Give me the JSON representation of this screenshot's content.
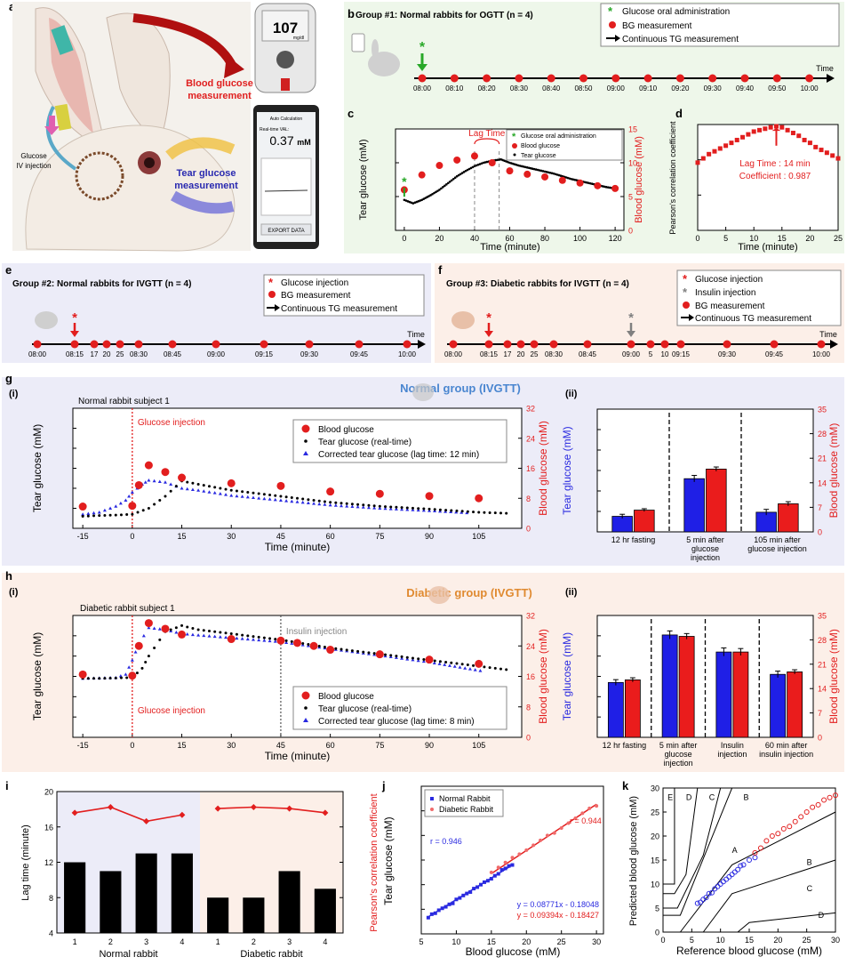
{
  "labels": {
    "a": "a",
    "b": "b",
    "c": "c",
    "d": "d",
    "e": "e",
    "f": "f",
    "g": "g",
    "h": "h",
    "i": "i",
    "j": "j",
    "k": "k"
  },
  "panel_a": {
    "bg_text_1": "Blood glucose",
    "bg_text_2": "measurement",
    "tg_text_1": "Tear glucose",
    "tg_text_2": "measurement",
    "iv_text_1": "Glucose",
    "iv_text_2": "IV injection",
    "meter_value": "107",
    "meter_unit": "mg/dl",
    "phone_header": "Auto Calculation",
    "phone_label": "Real-time VAL:",
    "phone_value": "0.37",
    "phone_unit": "mM",
    "phone_export": "EXPORT DATA"
  },
  "legend_common": {
    "glucose_oral": "Glucose oral administration",
    "bg_meas": "BG measurement",
    "tg_cont": "Continuous TG measurement",
    "glucose_inj": "Glucose injection",
    "insulin_inj": "Insulin injection",
    "time": "Time"
  },
  "panel_b": {
    "title": "Group #1: Normal rabbits for OGTT (n = 4)",
    "times": [
      "08:00",
      "08:10",
      "08:20",
      "08:30",
      "08:40",
      "08:50",
      "09:00",
      "09:10",
      "09:20",
      "09:30",
      "09:40",
      "09:50",
      "10:00"
    ]
  },
  "panel_e": {
    "title": "Group #2: Normal rabbits for IVGTT (n = 4)",
    "times": [
      "08:00",
      "08:15",
      "17",
      "20",
      "25",
      "08:30",
      "08:45",
      "09:00",
      "09:15",
      "09:30",
      "09:45",
      "10:00"
    ]
  },
  "panel_f": {
    "title": "Group #3: Diabetic rabbits for IVGTT (n = 4)",
    "times": [
      "08:00",
      "08:15",
      "17",
      "20",
      "25",
      "08:30",
      "08:45",
      "09:00",
      "5",
      "10",
      "09:15",
      "09:30",
      "09:45",
      "10:00"
    ]
  },
  "panel_c": {
    "legend": [
      "Glucose oral administration",
      "Blood glucose",
      "Tear glucose"
    ],
    "annotation": "Lag Time",
    "xlabel": "Time (minute)",
    "ylabel": "Tear glucose (mM)",
    "y2label": "Blood glucose (mM)"
  },
  "panel_d": {
    "xlabel": "Time (minute)",
    "ylabel": "Pearson's correlation coefficient",
    "annotation_1": "Lag Time : 14 min",
    "annotation_2": "Coefficient : 0.987"
  },
  "panel_g": {
    "sub_i": "(i)",
    "sub_ii": "(ii)",
    "subject": "Normal rabbit subject 1",
    "group_title": "Normal group (IVGTT)",
    "injection": "Glucose injection",
    "legend": [
      "Blood glucose",
      "Tear glucose (real-time)",
      "Corrected tear glucose (lag time: 12 min)"
    ],
    "xlabel": "Time (minute)",
    "ylabel": "Tear glucose (mM)",
    "y2label": "Blood glucose (mM)",
    "bar_categories": [
      "12 hr fasting",
      "5 min after glucose injection",
      "105 min after glucose injection"
    ]
  },
  "panel_h": {
    "sub_i": "(i)",
    "sub_ii": "(ii)",
    "subject": "Diabetic rabbit subject 1",
    "group_title": "Diabetic group (IVGTT)",
    "injection": "Glucose injection",
    "insulin": "Insulin injection",
    "legend": [
      "Blood glucose",
      "Tear glucose (real-time)",
      "Corrected tear glucose (lag time: 8 min)"
    ],
    "xlabel": "Time (minute)",
    "ylabel": "Tear glucose (mM)",
    "y2label": "Blood glucose (mM)",
    "bar_categories": [
      "12 hr fasting",
      "5 min after glucose injection",
      "Insulin injection",
      "60 min after insulin injection"
    ]
  },
  "panel_i": {
    "ylabel": "Lag time (minute)",
    "y2label": "Pearson's correlation coefficient",
    "group_normal": "Normal rabbit",
    "group_diabetic": "Diabetic rabbit"
  },
  "panel_j": {
    "xlabel": "Blood glucose (mM)",
    "ylabel": "Tear glucose (mM)",
    "legend": [
      "Normal Rabbit",
      "Diabetic Rabbit"
    ],
    "r_normal": "r = 0.946",
    "r_diabetic": "r = 0.944",
    "eq_normal": "y = 0.08771x - 0.18048",
    "eq_diabetic": "y = 0.09394x - 0.18427"
  },
  "panel_k": {
    "xlabel": "Reference blood glucose (mM)",
    "ylabel": "Predicted blood glucose (mM)",
    "zones": [
      "A",
      "B",
      "B",
      "C",
      "C",
      "D",
      "D",
      "E"
    ]
  },
  "chart_data": [
    {
      "id": "c",
      "type": "scatter",
      "xlim": [
        -5,
        125
      ],
      "ylim": [
        0,
        1.5
      ],
      "y2lim": [
        0,
        15
      ],
      "xticks": [
        0,
        20,
        40,
        60,
        80,
        100,
        120
      ],
      "yticks": [
        0.0,
        0.5,
        1.0,
        1.5
      ],
      "y2ticks": [
        0,
        5,
        10,
        15
      ],
      "series": [
        {
          "name": "Blood glucose",
          "axis": "y2",
          "x": [
            0,
            10,
            20,
            30,
            40,
            50,
            60,
            70,
            80,
            90,
            100,
            110,
            120
          ],
          "values": [
            6.0,
            8.2,
            9.6,
            10.4,
            11.0,
            10.0,
            8.8,
            8.3,
            7.9,
            7.4,
            7.0,
            6.6,
            6.2
          ]
        },
        {
          "name": "Tear glucose",
          "axis": "y",
          "x": [
            0,
            5,
            10,
            15,
            20,
            25,
            30,
            35,
            40,
            45,
            50,
            55,
            60,
            65,
            70,
            75,
            80,
            85,
            90,
            95,
            100,
            105,
            110,
            115,
            120
          ],
          "values": [
            0.45,
            0.4,
            0.45,
            0.52,
            0.6,
            0.7,
            0.8,
            0.88,
            0.95,
            1.0,
            1.03,
            1.05,
            1.0,
            0.96,
            0.93,
            0.9,
            0.87,
            0.84,
            0.8,
            0.76,
            0.73,
            0.7,
            0.67,
            0.64,
            0.62
          ]
        }
      ],
      "glucose_marker_x": 0,
      "lag_lines_x": [
        40,
        54
      ]
    },
    {
      "id": "d",
      "type": "scatter",
      "xlim": [
        0,
        25
      ],
      "ylim": [
        0.25,
        1.0
      ],
      "xticks": [
        0,
        5,
        10,
        15,
        20,
        25
      ],
      "yticks": [
        0.25,
        0.5,
        0.75,
        1.0
      ],
      "x": [
        0,
        1,
        2,
        3,
        4,
        5,
        6,
        7,
        8,
        9,
        10,
        11,
        12,
        13,
        14,
        15,
        16,
        17,
        18,
        19,
        20,
        21,
        22,
        23,
        24,
        25
      ],
      "values": [
        0.73,
        0.76,
        0.79,
        0.81,
        0.83,
        0.85,
        0.87,
        0.89,
        0.91,
        0.93,
        0.95,
        0.96,
        0.97,
        0.98,
        0.987,
        0.98,
        0.96,
        0.94,
        0.92,
        0.89,
        0.87,
        0.84,
        0.82,
        0.8,
        0.78,
        0.76
      ]
    },
    {
      "id": "g-i",
      "type": "scatter",
      "xlim": [
        -18,
        118
      ],
      "ylim": [
        0,
        3.0
      ],
      "y2lim": [
        0,
        32
      ],
      "xticks": [
        -15,
        0,
        15,
        30,
        45,
        60,
        75,
        90,
        105
      ],
      "yticks": [
        0.0,
        0.5,
        1.0,
        1.5,
        2.0,
        2.5,
        3.0
      ],
      "y2ticks": [
        0,
        8,
        16,
        24,
        32
      ],
      "series": [
        {
          "name": "Blood glucose",
          "axis": "y2",
          "x": [
            -15,
            0,
            2,
            5,
            10,
            15,
            30,
            45,
            60,
            75,
            90,
            105
          ],
          "values": [
            5.8,
            6.0,
            11.5,
            16.8,
            15.0,
            13.5,
            12.0,
            11.3,
            9.8,
            9.2,
            8.6,
            8.0
          ]
        },
        {
          "name": "Tear glucose (real-time)",
          "axis": "y",
          "x": [
            -15,
            -10,
            -5,
            0,
            5,
            10,
            15,
            20,
            30,
            45,
            60,
            75,
            90,
            105,
            115
          ],
          "values": [
            0.3,
            0.32,
            0.33,
            0.35,
            0.5,
            0.8,
            1.18,
            1.1,
            0.95,
            0.8,
            0.65,
            0.55,
            0.48,
            0.4,
            0.37
          ]
        },
        {
          "name": "Corrected tear glucose (lag time: 12 min)",
          "axis": "y",
          "x": [
            -15,
            -10,
            -5,
            -2,
            0,
            3,
            5,
            10,
            15,
            20,
            30,
            45,
            60,
            75,
            90,
            103
          ],
          "values": [
            0.35,
            0.4,
            0.55,
            0.7,
            0.9,
            1.1,
            1.2,
            1.15,
            1.0,
            0.95,
            0.82,
            0.7,
            0.58,
            0.5,
            0.44,
            0.38
          ]
        }
      ],
      "injection_x": 0
    },
    {
      "id": "g-ii",
      "type": "bar",
      "categories": [
        "12 hr fasting",
        "5 min after glucose injection",
        "105 min after glucose injection"
      ],
      "ylim": [
        0,
        3.0
      ],
      "y2lim": [
        0,
        35
      ],
      "yticks": [
        0.0,
        0.5,
        1.0,
        1.5,
        2.0,
        2.5,
        3.0
      ],
      "y2ticks": [
        0,
        7,
        14,
        21,
        28,
        35
      ],
      "series": [
        {
          "name": "Tear glucose",
          "axis": "y",
          "values": [
            0.38,
            1.3,
            0.48
          ],
          "errors": [
            0.05,
            0.08,
            0.07
          ]
        },
        {
          "name": "Blood glucose",
          "axis": "y2",
          "values": [
            6.2,
            17.9,
            8.0
          ],
          "errors": [
            0.4,
            0.6,
            0.6
          ]
        }
      ]
    },
    {
      "id": "h-i",
      "type": "scatter",
      "xlim": [
        -18,
        118
      ],
      "ylim": [
        0,
        3.0
      ],
      "y2lim": [
        0,
        32
      ],
      "xticks": [
        -15,
        0,
        15,
        30,
        45,
        60,
        75,
        90,
        105
      ],
      "yticks": [
        0.0,
        0.5,
        1.0,
        1.5,
        2.0,
        2.5,
        3.0
      ],
      "y2ticks": [
        0,
        8,
        16,
        24,
        32
      ],
      "series": [
        {
          "name": "Blood glucose",
          "axis": "y2",
          "x": [
            -15,
            0,
            2,
            5,
            10,
            15,
            30,
            45,
            50,
            55,
            60,
            75,
            90,
            105
          ],
          "values": [
            16.5,
            16.2,
            24.0,
            30.0,
            28.5,
            27.0,
            25.8,
            25.4,
            24.8,
            24.0,
            23.0,
            21.8,
            20.4,
            19.3
          ]
        },
        {
          "name": "Tear glucose (real-time)",
          "axis": "y",
          "x": [
            -15,
            -10,
            -5,
            0,
            3,
            5,
            10,
            15,
            20,
            30,
            45,
            60,
            75,
            90,
            105,
            115
          ],
          "values": [
            1.45,
            1.45,
            1.46,
            1.47,
            1.7,
            2.0,
            2.6,
            2.75,
            2.65,
            2.55,
            2.4,
            2.2,
            2.05,
            1.9,
            1.75,
            1.65
          ]
        },
        {
          "name": "Corrected tear glucose (lag time: 8 min)",
          "axis": "y",
          "x": [
            -15,
            -10,
            -5,
            -2,
            0,
            2,
            5,
            10,
            15,
            30,
            45,
            60,
            75,
            90,
            107
          ],
          "values": [
            1.45,
            1.46,
            1.47,
            1.55,
            1.9,
            2.3,
            2.7,
            2.65,
            2.55,
            2.45,
            2.35,
            2.18,
            2.02,
            1.85,
            1.62
          ]
        }
      ],
      "injection_x": 0,
      "insulin_x": 45
    },
    {
      "id": "h-ii",
      "type": "bar",
      "categories": [
        "12 hr fasting",
        "5 min after glucose injection",
        "Insulin injection",
        "60 min after insulin injection"
      ],
      "ylim": [
        0,
        3.0
      ],
      "y2lim": [
        0,
        35
      ],
      "yticks": [
        0.0,
        0.5,
        1.0,
        1.5,
        2.0,
        2.5,
        3.0
      ],
      "y2ticks": [
        0,
        7,
        14,
        21,
        28,
        35
      ],
      "series": [
        {
          "name": "Tear glucose",
          "axis": "y",
          "values": [
            1.35,
            2.52,
            2.1,
            1.55
          ],
          "errors": [
            0.07,
            0.1,
            0.1,
            0.08
          ]
        },
        {
          "name": "Blood glucose",
          "axis": "y2",
          "values": [
            16.5,
            29.0,
            24.5,
            18.8
          ],
          "errors": [
            0.6,
            0.8,
            1.0,
            0.6
          ]
        }
      ]
    },
    {
      "id": "i",
      "type": "bar",
      "categories": [
        "1",
        "2",
        "3",
        "4",
        "1",
        "2",
        "3",
        "4"
      ],
      "ylim": [
        4,
        20
      ],
      "y2lim": [
        0.8,
        1.0
      ],
      "yticks": [
        4,
        8,
        12,
        16,
        20
      ],
      "y2ticks": [
        0.8,
        0.85,
        0.9,
        0.95,
        1.0
      ],
      "series": [
        {
          "name": "Lag time",
          "axis": "y",
          "values": [
            12,
            11,
            13,
            13,
            8,
            8,
            11,
            9
          ]
        },
        {
          "name": "Pearson's correlation coefficient",
          "axis": "y2",
          "values": [
            0.97,
            0.978,
            0.958,
            0.967,
            0.976,
            0.978,
            0.976,
            0.97
          ]
        }
      ]
    },
    {
      "id": "j",
      "type": "scatter",
      "xlim": [
        5,
        31
      ],
      "ylim": [
        0,
        3.0
      ],
      "xticks": [
        5,
        10,
        15,
        20,
        25,
        30
      ],
      "yticks": [
        0.0,
        0.5,
        1.0,
        1.5,
        2.0,
        2.5,
        3.0
      ],
      "series": [
        {
          "name": "Normal Rabbit",
          "slope": 0.08771,
          "intercept": -0.18048,
          "x": [
            6,
            6.5,
            7,
            7.5,
            8,
            8.5,
            9,
            9.5,
            10,
            10.5,
            11,
            11.5,
            12,
            12.5,
            13,
            13.5,
            14,
            14.5,
            15,
            15.5,
            16,
            16.5,
            17,
            17.5,
            18
          ],
          "values": [
            0.33,
            0.4,
            0.42,
            0.48,
            0.52,
            0.55,
            0.6,
            0.62,
            0.7,
            0.73,
            0.78,
            0.82,
            0.85,
            0.92,
            0.95,
            1.0,
            1.05,
            1.08,
            1.12,
            1.18,
            1.22,
            1.3,
            1.33,
            1.38,
            1.4
          ]
        },
        {
          "name": "Diabetic Rabbit",
          "slope": 0.09394,
          "intercept": -0.18427,
          "x": [
            15,
            16,
            17,
            18,
            19,
            20,
            21,
            22,
            23,
            24,
            25,
            26,
            27,
            28,
            29,
            30
          ],
          "values": [
            1.25,
            1.35,
            1.45,
            1.55,
            1.62,
            1.7,
            1.8,
            1.9,
            2.0,
            2.05,
            2.15,
            2.25,
            2.35,
            2.45,
            2.55,
            2.6
          ]
        }
      ]
    },
    {
      "id": "k",
      "type": "scatter",
      "xlim": [
        0,
        30
      ],
      "ylim": [
        0,
        30
      ],
      "xticks": [
        0,
        5,
        10,
        15,
        20,
        25,
        30
      ],
      "yticks": [
        0,
        5,
        10,
        15,
        20,
        25,
        30
      ],
      "series": [
        {
          "name": "Normal Rabbit",
          "x": [
            6,
            6.5,
            7,
            7.5,
            8,
            8.5,
            9,
            9.5,
            10,
            10.5,
            11,
            11.5,
            12,
            12.5,
            13,
            13.5,
            14,
            15,
            16
          ],
          "values": [
            6.0,
            6.2,
            6.8,
            7.2,
            8.0,
            8.2,
            9.0,
            9.5,
            10.0,
            10.5,
            11.0,
            11.5,
            12.0,
            12.5,
            13.0,
            13.8,
            14.0,
            15.0,
            15.5
          ]
        },
        {
          "name": "Diabetic Rabbit",
          "x": [
            16,
            17,
            18,
            19,
            20,
            21,
            22,
            23,
            24,
            25,
            26,
            27,
            28,
            29,
            30
          ],
          "values": [
            16.5,
            17.5,
            19.0,
            20.0,
            20.5,
            21.5,
            22.0,
            23.0,
            24.0,
            25.0,
            26.0,
            26.5,
            27.5,
            28.0,
            28.5
          ]
        }
      ]
    }
  ]
}
